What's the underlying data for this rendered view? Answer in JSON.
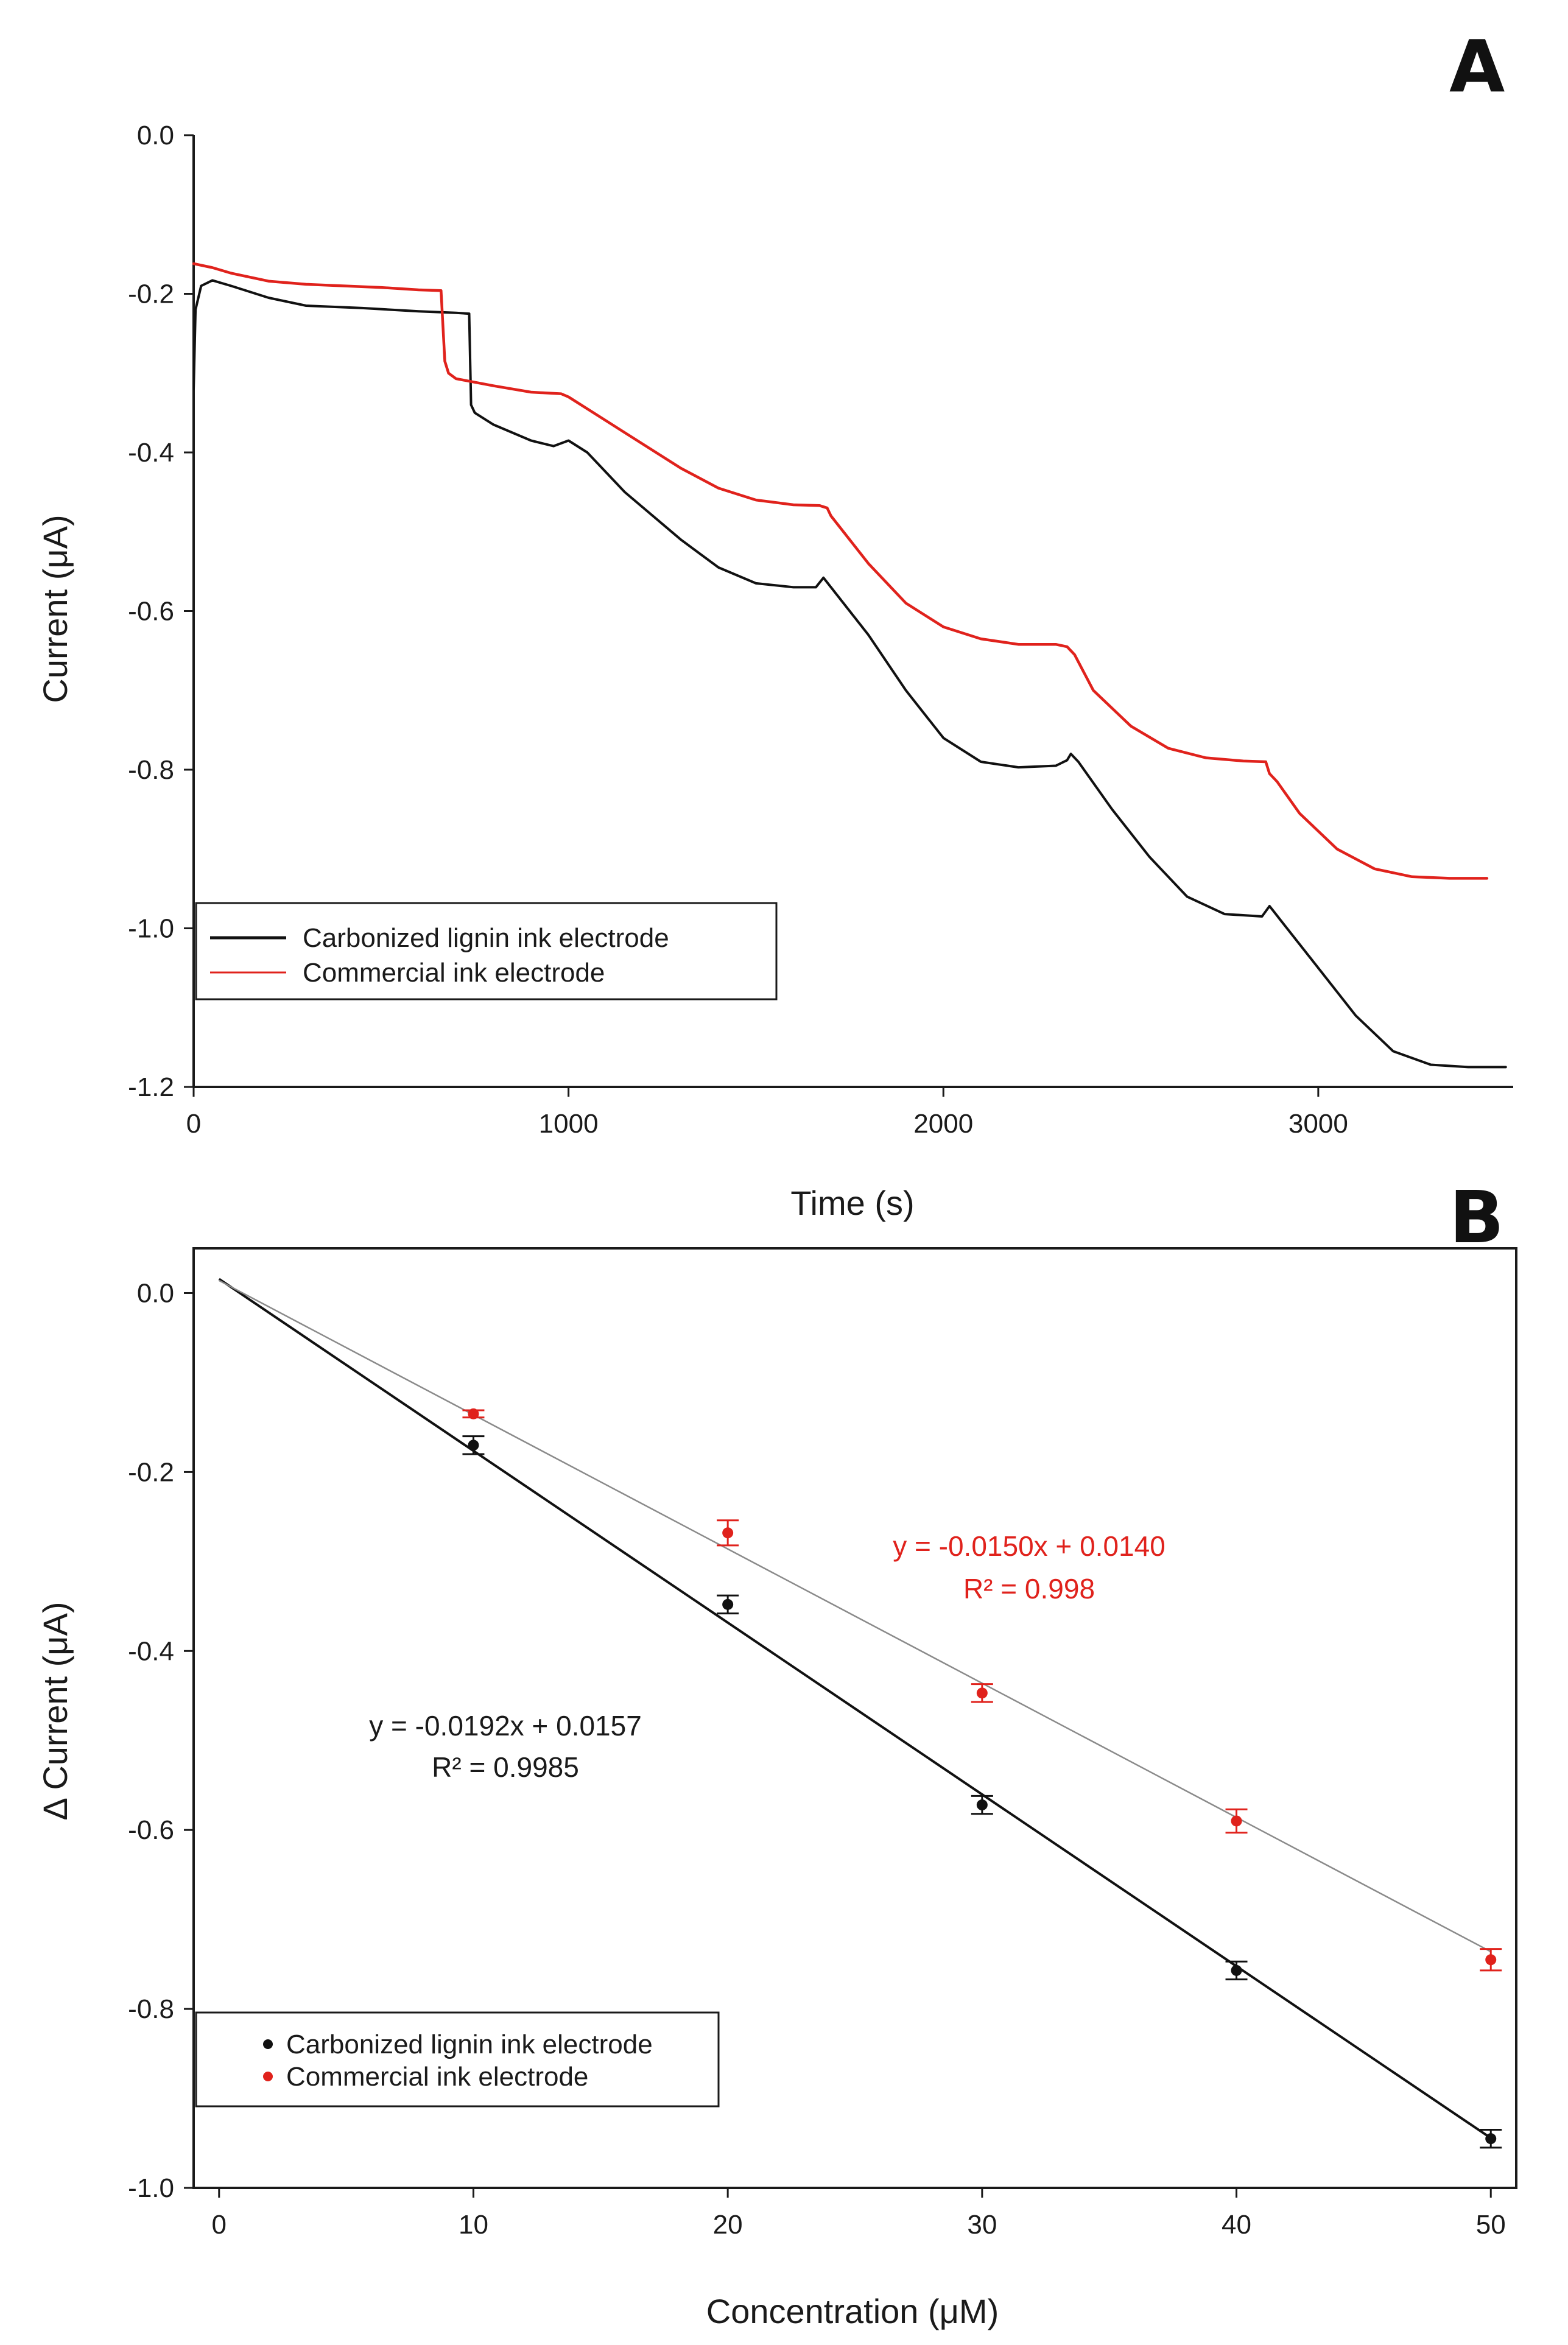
{
  "colors": {
    "black_series": "#111111",
    "red_series": "#e0221c",
    "axis": "#1a1a1a"
  },
  "chart_data": [
    {
      "panel_label": "A",
      "type": "line",
      "xlabel": "Time (s)",
      "ylabel": "Current (μA)",
      "xlim": [
        0,
        3520
      ],
      "ylim": [
        -1.2,
        0.0
      ],
      "xticks": [
        0,
        1000,
        2000,
        3000
      ],
      "xtick_labels": [
        "0",
        "1000",
        "2000",
        "3000"
      ],
      "yticks": [
        0.0,
        -0.2,
        -0.4,
        -0.6,
        -0.8,
        -1.0,
        -1.2
      ],
      "ytick_labels": [
        "0.0",
        "-0.2",
        "-0.4",
        "-0.6",
        "-0.8",
        "-1.0",
        "-1.2"
      ],
      "grid": false,
      "legend_position": "bottom-left",
      "series": [
        {
          "name": "Carbonized lignin ink electrode",
          "color": "#111111",
          "x": [
            0,
            5,
            20,
            50,
            100,
            200,
            300,
            450,
            600,
            700,
            735,
            740,
            750,
            800,
            900,
            960,
            1000,
            1050,
            1150,
            1300,
            1400,
            1500,
            1600,
            1660,
            1680,
            1700,
            1800,
            1900,
            2000,
            2100,
            2200,
            2300,
            2330,
            2340,
            2360,
            2450,
            2550,
            2650,
            2750,
            2850,
            2870,
            2880,
            2900,
            3000,
            3100,
            3200,
            3300,
            3400,
            3500
          ],
          "y": [
            -0.32,
            -0.22,
            -0.19,
            -0.183,
            -0.19,
            -0.205,
            -0.215,
            -0.218,
            -0.222,
            -0.224,
            -0.225,
            -0.34,
            -0.35,
            -0.365,
            -0.385,
            -0.392,
            -0.385,
            -0.4,
            -0.45,
            -0.51,
            -0.545,
            -0.565,
            -0.57,
            -0.57,
            -0.558,
            -0.57,
            -0.63,
            -0.7,
            -0.76,
            -0.79,
            -0.797,
            -0.795,
            -0.788,
            -0.78,
            -0.79,
            -0.85,
            -0.91,
            -0.96,
            -0.982,
            -0.985,
            -0.972,
            -0.978,
            -0.99,
            -1.05,
            -1.11,
            -1.155,
            -1.172,
            -1.175,
            -1.175
          ]
        },
        {
          "name": "Commercial ink electrode",
          "color": "#e0221c",
          "x": [
            0,
            50,
            100,
            200,
            300,
            400,
            500,
            600,
            660,
            670,
            680,
            700,
            800,
            900,
            980,
            1000,
            1100,
            1200,
            1300,
            1400,
            1500,
            1600,
            1670,
            1690,
            1700,
            1800,
            1900,
            2000,
            2100,
            2200,
            2300,
            2330,
            2350,
            2400,
            2500,
            2600,
            2700,
            2800,
            2860,
            2870,
            2890,
            2950,
            3050,
            3150,
            3250,
            3350,
            3450
          ],
          "y": [
            -0.162,
            -0.167,
            -0.174,
            -0.184,
            -0.188,
            -0.19,
            -0.192,
            -0.195,
            -0.196,
            -0.285,
            -0.3,
            -0.307,
            -0.316,
            -0.324,
            -0.326,
            -0.33,
            -0.36,
            -0.39,
            -0.42,
            -0.445,
            -0.46,
            -0.466,
            -0.467,
            -0.47,
            -0.48,
            -0.54,
            -0.59,
            -0.62,
            -0.635,
            -0.642,
            -0.642,
            -0.645,
            -0.655,
            -0.7,
            -0.745,
            -0.773,
            -0.785,
            -0.789,
            -0.79,
            -0.805,
            -0.815,
            -0.855,
            -0.9,
            -0.925,
            -0.935,
            -0.937,
            -0.937
          ]
        }
      ]
    },
    {
      "panel_label": "B",
      "type": "scatter",
      "xlabel": "Concentration (μM)",
      "ylabel": "Δ Current (μA)",
      "xlim": [
        -1,
        51
      ],
      "ylim": [
        -1.0,
        0.05
      ],
      "xticks": [
        0,
        10,
        20,
        30,
        40,
        50
      ],
      "xtick_labels": [
        "0",
        "10",
        "20",
        "30",
        "40",
        "50"
      ],
      "yticks": [
        0.0,
        -0.2,
        -0.4,
        -0.6,
        -0.8,
        -1.0
      ],
      "ytick_labels": [
        "0.0",
        "-0.2",
        "-0.4",
        "-0.6",
        "-0.8",
        "-1.0"
      ],
      "grid": false,
      "legend_position": "bottom-left",
      "series": [
        {
          "name": "Carbonized lignin ink electrode",
          "color": "#111111",
          "x": [
            10,
            20,
            30,
            40,
            50
          ],
          "y": [
            -0.17,
            -0.348,
            -0.572,
            -0.757,
            -0.945
          ],
          "error": [
            0.01,
            0.01,
            0.01,
            0.01,
            0.01
          ],
          "fit": {
            "slope": -0.0192,
            "intercept": 0.0157,
            "equation": "y = -0.0192x + 0.0157",
            "r2": "R² = 0.9985"
          }
        },
        {
          "name": "Commercial ink electrode",
          "color": "#e0221c",
          "x": [
            10,
            20,
            30,
            40,
            50
          ],
          "y": [
            -0.135,
            -0.268,
            -0.447,
            -0.59,
            -0.745
          ],
          "error": [
            0.004,
            0.014,
            0.01,
            0.013,
            0.012
          ],
          "fit": {
            "slope": -0.015,
            "intercept": 0.014,
            "equation": "y = -0.0150x + 0.0140",
            "r2": "R² = 0.998"
          }
        }
      ]
    }
  ]
}
